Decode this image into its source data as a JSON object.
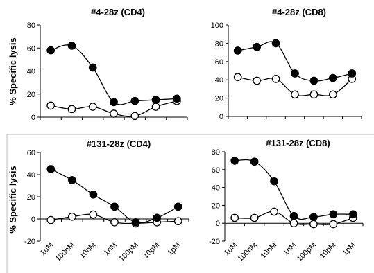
{
  "figure": {
    "ylabel": "% Specific lysis",
    "x_tick_labels": [
      "1uM",
      "100nM",
      "10nM",
      "1nM",
      "100pM",
      "10pM",
      "1pM"
    ]
  },
  "chart_data": [
    {
      "type": "line",
      "title": "#4-28z (CD4)",
      "ylim": [
        0,
        80
      ],
      "yticks": [
        0,
        20,
        40,
        60,
        80
      ],
      "x": [
        "1uM",
        "100nM",
        "10nM",
        "1nM",
        "100pM",
        "10pM",
        "1pM"
      ],
      "series": [
        {
          "marker": "filled",
          "color": "#000000",
          "values": [
            58,
            62,
            43,
            13,
            14,
            15,
            16
          ]
        },
        {
          "marker": "open",
          "color": "#000000",
          "values": [
            10,
            7,
            9,
            3,
            1,
            9,
            14
          ]
        }
      ]
    },
    {
      "type": "line",
      "title": "#4-28z (CD8)",
      "ylim": [
        0,
        100
      ],
      "yticks": [
        0,
        20,
        40,
        60,
        80,
        100
      ],
      "x": [
        "1uM",
        "100nM",
        "10nM",
        "1nM",
        "100pM",
        "10pM",
        "1pM"
      ],
      "series": [
        {
          "marker": "filled",
          "color": "#000000",
          "values": [
            72,
            76,
            80,
            47,
            39,
            42,
            47
          ]
        },
        {
          "marker": "open",
          "color": "#000000",
          "values": [
            43,
            39,
            41,
            24,
            24,
            24,
            41
          ]
        }
      ]
    },
    {
      "type": "line",
      "title": "#131-28z (CD4)",
      "ylim": [
        -20,
        60
      ],
      "yticks": [
        -20,
        0,
        20,
        40,
        60
      ],
      "x": [
        "1uM",
        "100nM",
        "10nM",
        "1nM",
        "100pM",
        "10pM",
        "1pM"
      ],
      "series": [
        {
          "marker": "filled",
          "color": "#000000",
          "values": [
            45,
            35,
            22,
            11,
            -3,
            1,
            11
          ]
        },
        {
          "marker": "open",
          "color": "#000000",
          "values": [
            -1,
            2,
            4,
            -3,
            -4,
            -3,
            -2
          ]
        }
      ]
    },
    {
      "type": "line",
      "title": "#131-28z (CD8)",
      "ylim": [
        -20,
        80
      ],
      "yticks": [
        -20,
        0,
        20,
        40,
        60,
        80
      ],
      "x": [
        "1uM",
        "100nM",
        "10nM",
        "1nM",
        "100pM",
        "10pM",
        "1pM"
      ],
      "series": [
        {
          "marker": "filled",
          "color": "#000000",
          "values": [
            70,
            69,
            47,
            8,
            7,
            10,
            10
          ]
        },
        {
          "marker": "open",
          "color": "#000000",
          "values": [
            6,
            6,
            13,
            0,
            -1,
            -1,
            6
          ]
        }
      ]
    }
  ]
}
